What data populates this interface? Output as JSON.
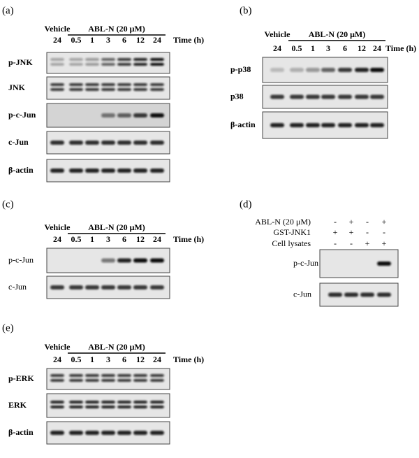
{
  "panels": [
    {
      "label": "(a)",
      "vehicle": "Vehicle",
      "treatment": "ABL-N (20 μM)",
      "times": [
        "24",
        "0.5",
        "1",
        "3",
        "6",
        "12",
        "24"
      ],
      "time_unit": "Time (h)",
      "blots": [
        "p-JNK",
        "JNK",
        "p-c-Jun",
        "c-Jun",
        "β-actin"
      ]
    },
    {
      "label": "(b)",
      "vehicle": "Vehicle",
      "treatment": "ABL-N (20 μM)",
      "times": [
        "24",
        "0.5",
        "1",
        "3",
        "6",
        "12",
        "24"
      ],
      "time_unit": "Time (h)",
      "blots": [
        "p-p38",
        "p38",
        "β-actin"
      ]
    },
    {
      "label": "(c)",
      "vehicle": "Vehicle",
      "treatment": "ABL-N (20 μM)",
      "times": [
        "24",
        "0.5",
        "1",
        "3",
        "6",
        "12",
        "24"
      ],
      "time_unit": "Time (h)",
      "blots": [
        "p-c-Jun",
        "c-Jun"
      ]
    },
    {
      "label": "(d)",
      "conditions": [
        {
          "name": "ABL-N (20 μM)",
          "signs": [
            "-",
            "+",
            "-",
            "+"
          ]
        },
        {
          "name": "GST-JNK1",
          "signs": [
            "+",
            "+",
            "-",
            "-"
          ]
        },
        {
          "name": "Cell lysates",
          "signs": [
            "-",
            "-",
            "+",
            "+"
          ]
        }
      ],
      "blots": [
        "p-c-Jun",
        "c-Jun"
      ]
    },
    {
      "label": "(e)",
      "vehicle": "Vehicle",
      "treatment": "ABL-N (20 μM)",
      "times": [
        "24",
        "0.5",
        "1",
        "3",
        "6",
        "12",
        "24"
      ],
      "time_unit": "Time (h)",
      "blots": [
        "p-ERK",
        "ERK",
        "β-actin"
      ]
    }
  ]
}
